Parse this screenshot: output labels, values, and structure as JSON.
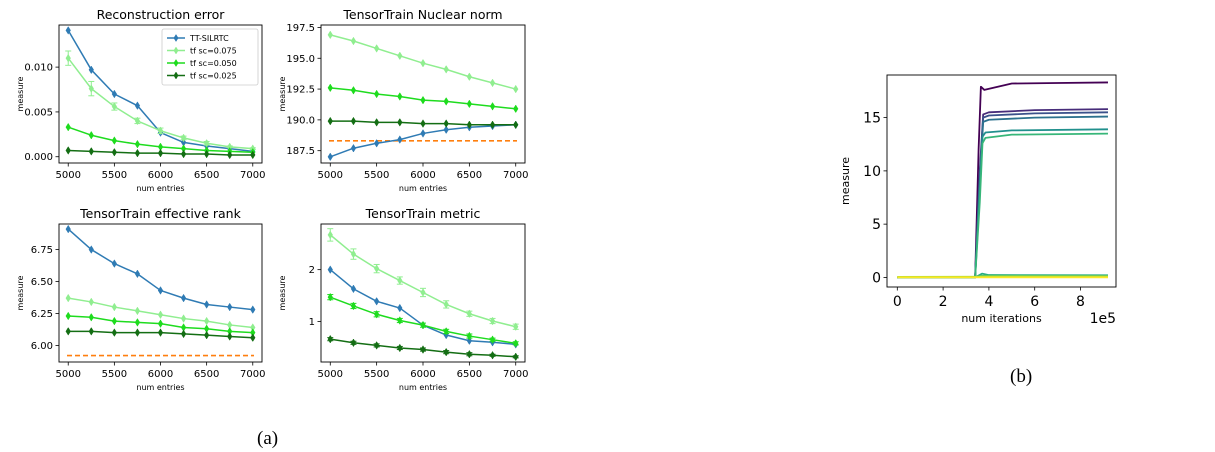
{
  "captions": {
    "a": "(a)",
    "b": "(b)"
  },
  "colors": {
    "tt": "#2f7bb4",
    "sc075": "#90ee90",
    "sc050": "#1edc1e",
    "sc025": "#146e14",
    "ref": "#ff7f0e"
  },
  "chart_data": [
    {
      "id": "recon",
      "type": "line",
      "title": "Reconstruction error",
      "xlabel": "num entries",
      "ylabel": "measure",
      "xlim": [
        4900,
        7100
      ],
      "ylim": [
        -0.0007,
        0.0147
      ],
      "xticks": [
        5000,
        5500,
        6000,
        6500,
        7000
      ],
      "yticks": [
        0.0,
        0.005,
        0.01
      ],
      "ytick_labels": [
        "0.000",
        "0.005",
        "0.010"
      ],
      "x": [
        5000,
        5250,
        5500,
        5750,
        6000,
        6250,
        6500,
        6750,
        7000
      ],
      "legend": {
        "placement": "top-right"
      },
      "series": [
        {
          "name": "TT-SILRTC",
          "color_key": "tt",
          "values": [
            0.0141,
            0.0097,
            0.007,
            0.0057,
            0.0027,
            0.0016,
            0.0012,
            0.0009,
            0.0006
          ]
        },
        {
          "name": "tf sc=0.075",
          "color_key": "sc075",
          "values": [
            0.011,
            0.0076,
            0.0056,
            0.004,
            0.0029,
            0.0021,
            0.0015,
            0.0011,
            0.0009
          ],
          "err": [
            0.0008,
            0.0008,
            0.0004,
            0.0003,
            0.0003,
            0.0002,
            0.0002,
            0.0001,
            0.0001
          ]
        },
        {
          "name": "tf sc=0.050",
          "color_key": "sc050",
          "values": [
            0.0033,
            0.0024,
            0.0018,
            0.0014,
            0.0011,
            0.0009,
            0.0007,
            0.0006,
            0.0005
          ]
        },
        {
          "name": "tf sc=0.025",
          "color_key": "sc025",
          "values": [
            0.0007,
            0.0006,
            0.0005,
            0.0004,
            0.0004,
            0.0003,
            0.0003,
            0.0002,
            0.0002
          ]
        }
      ]
    },
    {
      "id": "nuclear",
      "type": "line",
      "title": "TensorTrain Nuclear norm",
      "xlabel": "num entries",
      "ylabel": "measure",
      "xlim": [
        4900,
        7100
      ],
      "ylim": [
        186.5,
        197.7
      ],
      "xticks": [
        5000,
        5500,
        6000,
        6500,
        7000
      ],
      "yticks": [
        187.5,
        190.0,
        192.5,
        195.0,
        197.5
      ],
      "ytick_labels": [
        "187.5",
        "190.0",
        "192.5",
        "195.0",
        "197.5"
      ],
      "x": [
        5000,
        5250,
        5500,
        5750,
        6000,
        6250,
        6500,
        6750,
        7000
      ],
      "reference_line": {
        "value": 188.3,
        "color_key": "ref"
      },
      "series": [
        {
          "name": "TT-SILRTC",
          "color_key": "tt",
          "values": [
            187.0,
            187.7,
            188.1,
            188.4,
            188.9,
            189.2,
            189.4,
            189.5,
            189.6
          ]
        },
        {
          "name": "tf sc=0.075",
          "color_key": "sc075",
          "values": [
            196.9,
            196.4,
            195.8,
            195.2,
            194.6,
            194.1,
            193.5,
            193.0,
            192.5
          ]
        },
        {
          "name": "tf sc=0.050",
          "color_key": "sc050",
          "values": [
            192.6,
            192.4,
            192.1,
            191.9,
            191.6,
            191.5,
            191.3,
            191.1,
            190.9
          ]
        },
        {
          "name": "tf sc=0.025",
          "color_key": "sc025",
          "values": [
            189.9,
            189.9,
            189.8,
            189.8,
            189.7,
            189.7,
            189.6,
            189.6,
            189.6
          ]
        }
      ]
    },
    {
      "id": "effrank",
      "type": "line",
      "title": "TensorTrain effective rank",
      "xlabel": "num entries",
      "ylabel": "measure",
      "xlim": [
        4900,
        7100
      ],
      "ylim": [
        5.87,
        6.95
      ],
      "xticks": [
        5000,
        5500,
        6000,
        6500,
        7000
      ],
      "yticks": [
        6.0,
        6.25,
        6.5,
        6.75
      ],
      "ytick_labels": [
        "6.00",
        "6.25",
        "6.50",
        "6.75"
      ],
      "x": [
        5000,
        5250,
        5500,
        5750,
        6000,
        6250,
        6500,
        6750,
        7000
      ],
      "reference_line": {
        "value": 5.92,
        "color_key": "ref"
      },
      "series": [
        {
          "name": "TT-SILRTC",
          "color_key": "tt",
          "values": [
            6.91,
            6.75,
            6.64,
            6.56,
            6.43,
            6.37,
            6.32,
            6.3,
            6.28
          ]
        },
        {
          "name": "tf sc=0.075",
          "color_key": "sc075",
          "values": [
            6.37,
            6.34,
            6.3,
            6.27,
            6.24,
            6.21,
            6.19,
            6.16,
            6.14
          ]
        },
        {
          "name": "tf sc=0.050",
          "color_key": "sc050",
          "values": [
            6.23,
            6.22,
            6.19,
            6.18,
            6.17,
            6.14,
            6.13,
            6.11,
            6.1
          ]
        },
        {
          "name": "tf sc=0.025",
          "color_key": "sc025",
          "values": [
            6.11,
            6.11,
            6.1,
            6.1,
            6.1,
            6.09,
            6.08,
            6.07,
            6.06
          ]
        }
      ]
    },
    {
      "id": "metric",
      "type": "line",
      "title": "TensorTrain metric",
      "xlabel": "num entries",
      "ylabel": "measure",
      "xlim": [
        4900,
        7100
      ],
      "ylim": [
        0.22,
        2.88
      ],
      "xticks": [
        5000,
        5500,
        6000,
        6500,
        7000
      ],
      "yticks": [
        1,
        2
      ],
      "ytick_labels": [
        "1",
        "2"
      ],
      "x": [
        5000,
        5250,
        5500,
        5750,
        6000,
        6250,
        6500,
        6750,
        7000
      ],
      "series": [
        {
          "name": "TT-SILRTC",
          "color_key": "tt",
          "values": [
            2.0,
            1.63,
            1.39,
            1.26,
            0.93,
            0.74,
            0.63,
            0.6,
            0.56
          ]
        },
        {
          "name": "tf sc=0.075",
          "color_key": "sc075",
          "values": [
            2.67,
            2.3,
            2.02,
            1.79,
            1.56,
            1.33,
            1.15,
            1.01,
            0.9
          ],
          "err": [
            0.12,
            0.1,
            0.08,
            0.07,
            0.08,
            0.07,
            0.05,
            0.05,
            0.05
          ]
        },
        {
          "name": "tf sc=0.050",
          "color_key": "sc050",
          "values": [
            1.47,
            1.3,
            1.14,
            1.02,
            0.93,
            0.81,
            0.72,
            0.65,
            0.58
          ],
          "err": [
            0.05,
            0.05,
            0.05,
            0.04,
            0.04,
            0.04,
            0.04,
            0.03,
            0.03
          ]
        },
        {
          "name": "tf sc=0.025",
          "color_key": "sc025",
          "values": [
            0.66,
            0.59,
            0.54,
            0.49,
            0.46,
            0.41,
            0.37,
            0.35,
            0.32
          ],
          "err": [
            0.03,
            0.03,
            0.03,
            0.03,
            0.03,
            0.03,
            0.03,
            0.02,
            0.02
          ]
        }
      ]
    },
    {
      "id": "iters",
      "type": "line",
      "xlabel": "num iterations",
      "ylabel": "measure",
      "x_offset_label": "1e5",
      "xlim": [
        -0.45,
        9.55
      ],
      "ylim": [
        -0.9,
        19.0
      ],
      "xticks": [
        0,
        2,
        4,
        6,
        8
      ],
      "yticks": [
        0,
        5,
        10,
        15
      ],
      "series": [
        {
          "color": "#440154",
          "x": [
            0,
            3.4,
            3.55,
            3.65,
            3.8,
            5,
            7,
            9.2
          ],
          "values": [
            0,
            0,
            12,
            17.9,
            17.6,
            18.2,
            18.25,
            18.3
          ]
        },
        {
          "color": "#472c7a",
          "x": [
            0,
            3.4,
            3.6,
            3.75,
            4,
            6,
            9.2
          ],
          "values": [
            0,
            0,
            10,
            15.3,
            15.5,
            15.7,
            15.8
          ]
        },
        {
          "color": "#3b518b",
          "x": [
            0,
            3.4,
            3.6,
            3.75,
            4,
            6,
            9.2
          ],
          "values": [
            0,
            0,
            9.5,
            15.0,
            15.2,
            15.4,
            15.5
          ]
        },
        {
          "color": "#2c718e",
          "x": [
            0,
            3.4,
            3.6,
            3.75,
            4,
            6,
            9.2
          ],
          "values": [
            0,
            0,
            9,
            14.6,
            14.8,
            15.0,
            15.1
          ]
        },
        {
          "color": "#21908d",
          "x": [
            0,
            3.4,
            3.6,
            3.72,
            3.85,
            5,
            9.2
          ],
          "values": [
            0,
            0,
            8,
            13.2,
            13.6,
            13.8,
            13.9
          ]
        },
        {
          "color": "#37b679",
          "x": [
            0,
            3.4,
            3.6,
            3.72,
            3.85,
            5,
            9.2
          ],
          "values": [
            0,
            0,
            7,
            12.6,
            13.1,
            13.4,
            13.5
          ]
        },
        {
          "color": "#27ad81",
          "x": [
            0,
            3.4,
            3.7,
            4.0,
            9.2
          ],
          "values": [
            0,
            0,
            0.35,
            0.22,
            0.2
          ]
        },
        {
          "color": "#5ec962",
          "x": [
            0,
            3.4,
            3.7,
            9.2
          ],
          "values": [
            0,
            0,
            0.15,
            0.12
          ]
        },
        {
          "color": "#aadc32",
          "x": [
            0,
            9.2
          ],
          "values": [
            0.05,
            0.08
          ]
        },
        {
          "color": "#fde725",
          "x": [
            0,
            9.2
          ],
          "values": [
            0.0,
            0.0
          ]
        }
      ]
    }
  ]
}
